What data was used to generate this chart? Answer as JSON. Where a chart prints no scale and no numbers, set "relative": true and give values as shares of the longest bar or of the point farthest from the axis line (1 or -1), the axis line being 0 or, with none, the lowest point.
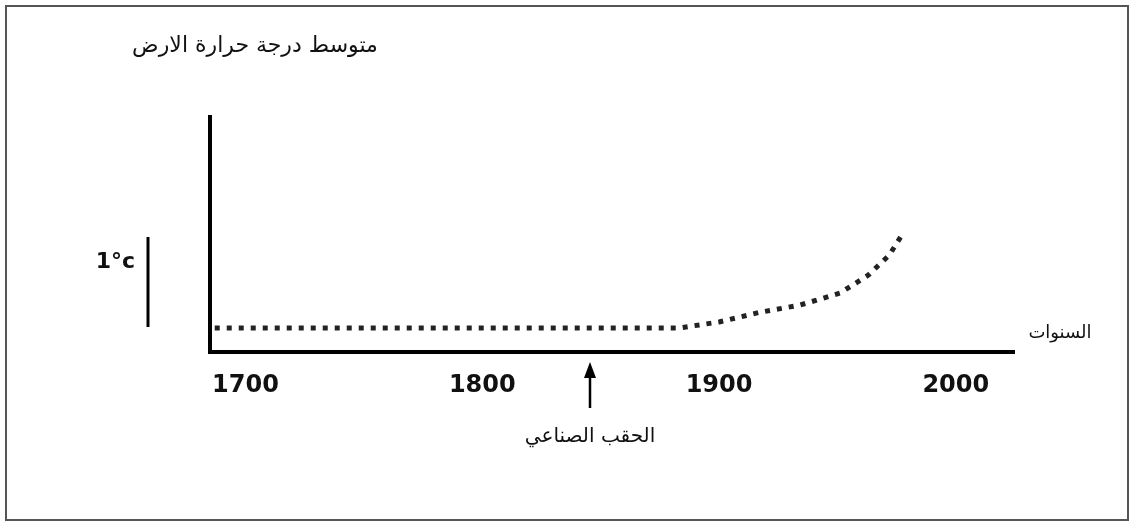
{
  "chart_data": {
    "type": "line",
    "title": "متوسط درجة حرارة الارض",
    "xlabel": "السنوات",
    "relative": true,
    "x": [
      1687,
      1750,
      1800,
      1850,
      1883,
      1900,
      1917,
      1934,
      1951,
      1963,
      1972,
      1978
    ],
    "series": [
      {
        "color": "#222222",
        "values": [
          0.2,
          0.2,
          0.2,
          0.2,
          0.2,
          0.25,
          0.33,
          0.39,
          0.49,
          0.64,
          0.81,
          1.0
        ]
      }
    ],
    "xlim": [
      1685,
      2025
    ],
    "xticks": [
      1700,
      1800,
      1900,
      2000
    ],
    "line_style": "dotted",
    "marker": "none",
    "annotations": [
      "1°c",
      "الحقب الصناعي"
    ]
  }
}
